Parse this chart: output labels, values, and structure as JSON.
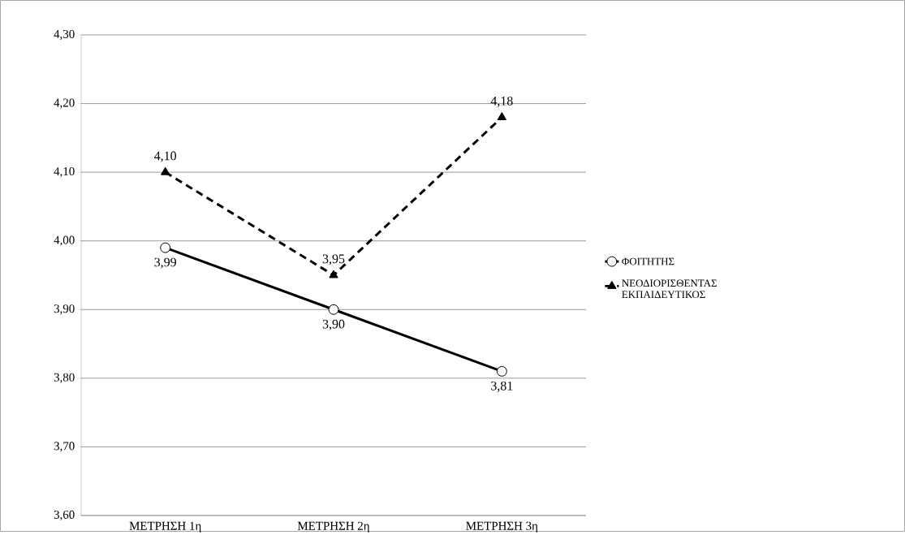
{
  "chart_data": {
    "type": "line",
    "categories": [
      "ΜΕΤΡΗΣΗ 1η",
      "ΜΕΤΡΗΣΗ 2η",
      "ΜΕΤΡΗΣΗ 3η"
    ],
    "series": [
      {
        "name": "ΦΟΙΤΗΤΗΣ",
        "color": "#000000",
        "values": [
          3.99,
          3.9,
          3.81
        ],
        "marker": "circle",
        "line_style": "solid",
        "value_labels": [
          "3,99",
          "3,90",
          "3,81"
        ]
      },
      {
        "name": "ΝΕΟΔΙΟΡΙΣΘΕΝΤΑΣ ΕΚΠΑΙΔΕΥΤΙΚΟΣ",
        "color": "#000000",
        "values": [
          4.1,
          3.95,
          4.18
        ],
        "marker": "triangle",
        "line_style": "dashed",
        "value_labels": [
          "4,10",
          "3,95",
          "4,18"
        ]
      }
    ],
    "ylim": [
      3.6,
      4.3
    ],
    "yticks": [
      {
        "value": 3.6,
        "label": "3,60"
      },
      {
        "value": 3.7,
        "label": "3,70"
      },
      {
        "value": 3.8,
        "label": "3,80"
      },
      {
        "value": 3.9,
        "label": "3,90"
      },
      {
        "value": 4.0,
        "label": "4,00"
      },
      {
        "value": 4.1,
        "label": "4,10"
      },
      {
        "value": 4.2,
        "label": "4,20"
      },
      {
        "value": 4.3,
        "label": "4,30"
      }
    ],
    "grid": "y",
    "legend": "right"
  }
}
